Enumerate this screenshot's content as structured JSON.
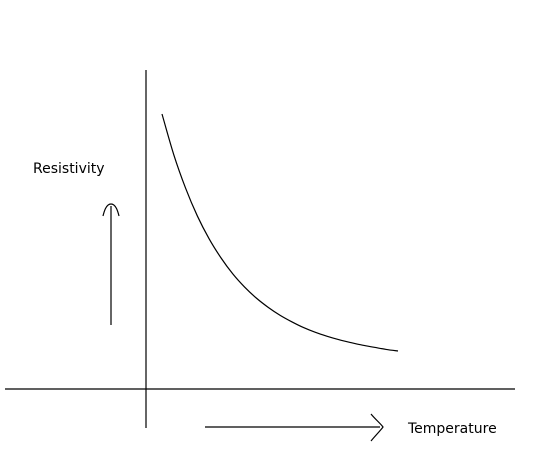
{
  "chart_data": {
    "type": "line",
    "xlabel": "Temperature",
    "ylabel": "Resistivity",
    "grid": false,
    "legend": "none",
    "series": [
      {
        "x": [
          0.0,
          0.05,
          0.1,
          0.15,
          0.2,
          0.25,
          0.3,
          0.35,
          0.4,
          0.45,
          0.5,
          0.55,
          0.6,
          0.65,
          0.7,
          0.75,
          0.8,
          0.85,
          0.9,
          0.95,
          1.0
        ],
        "y": [
          1.0,
          0.845,
          0.718,
          0.612,
          0.525,
          0.453,
          0.392,
          0.342,
          0.3,
          0.265,
          0.235,
          0.21,
          0.188,
          0.17,
          0.155,
          0.142,
          0.131,
          0.121,
          0.113,
          0.105,
          0.099
        ]
      }
    ],
    "style": {
      "line_color": "#000000",
      "axis_color": "#000000",
      "background": "#ffffff"
    }
  }
}
